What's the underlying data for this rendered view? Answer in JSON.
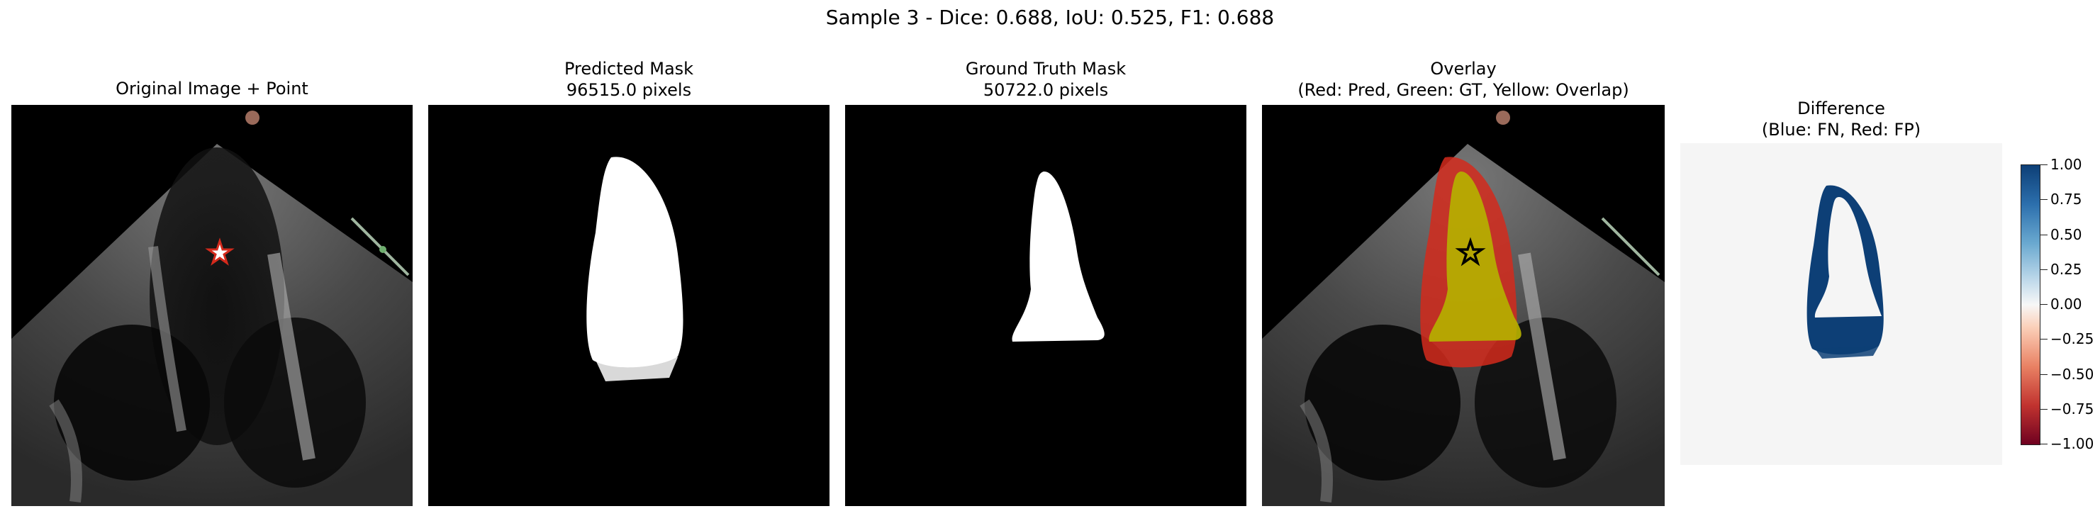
{
  "figure": {
    "suptitle": "Sample 3 - Dice: 0.688, IoU: 0.525, F1: 0.688"
  },
  "panels": [
    {
      "title_line1": "Original Image + Point",
      "title_line2": ""
    },
    {
      "title_line1": "Predicted Mask",
      "title_line2": "96515.0 pixels"
    },
    {
      "title_line1": "Ground Truth Mask",
      "title_line2": "50722.0 pixels"
    },
    {
      "title_line1": "Overlay",
      "title_line2": "(Red: Pred, Green: GT, Yellow: Overlap)"
    },
    {
      "title_line1": "Difference",
      "title_line2": "(Blue: FN, Red: FP)"
    }
  ],
  "colorbar": {
    "ticks": [
      "1.00",
      "0.75",
      "0.50",
      "0.25",
      "0.00",
      "−0.25",
      "−0.50",
      "−0.75",
      "−1.00"
    ]
  },
  "colors": {
    "predicted": "#d42a1c",
    "overlap": "#b5b000",
    "false_negative": "#0d3f76",
    "background_diff": "#f5f5f5"
  },
  "icons": {
    "point_marker": "star-icon"
  }
}
